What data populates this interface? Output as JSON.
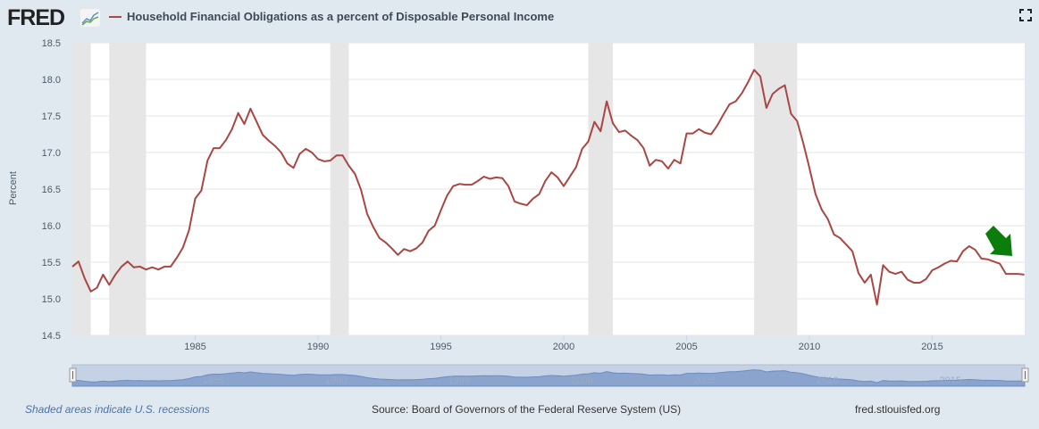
{
  "header": {
    "logo": "FRED",
    "fullscreen_icon": "expand-icon"
  },
  "footer": {
    "recession_note": "Shaded areas indicate U.S. recessions",
    "source": "Source: Board of Governors of the Federal Reserve System (US)",
    "site": "fred.stlouisfed.org"
  },
  "colors": {
    "series": "#aa4643",
    "recession": "#e6e6e6",
    "navigator_fill": "#8aa4cd",
    "arrow": "#0a7d0a",
    "recession_note": "#4a73a8"
  },
  "annotation": {
    "type": "arrow",
    "color": "#0a7d0a",
    "direction": "down-right"
  },
  "chart_data": {
    "type": "line",
    "title": "",
    "xlabel": "",
    "ylabel": "Percent",
    "ylim": [
      14.5,
      18.5
    ],
    "yticks": [
      "14.5",
      "15.0",
      "15.5",
      "16.0",
      "16.5",
      "17.0",
      "17.5",
      "18.0",
      "18.5"
    ],
    "xticks": [
      "1985",
      "1990",
      "1995",
      "2000",
      "2005",
      "2010",
      "2015"
    ],
    "grid": true,
    "legend_position": "top-left",
    "series": [
      {
        "name": "Household Financial Obligations as a percent of Disposable Personal Income",
        "x": [
          "1980Q1",
          "1980Q2",
          "1980Q3",
          "1980Q4",
          "1981Q1",
          "1981Q2",
          "1981Q3",
          "1981Q4",
          "1982Q1",
          "1982Q2",
          "1982Q3",
          "1982Q4",
          "1983Q1",
          "1983Q2",
          "1983Q3",
          "1983Q4",
          "1984Q1",
          "1984Q2",
          "1984Q3",
          "1984Q4",
          "1985Q1",
          "1985Q2",
          "1985Q3",
          "1985Q4",
          "1986Q1",
          "1986Q2",
          "1986Q3",
          "1986Q4",
          "1987Q1",
          "1987Q2",
          "1987Q3",
          "1987Q4",
          "1988Q1",
          "1988Q2",
          "1988Q3",
          "1988Q4",
          "1989Q1",
          "1989Q2",
          "1989Q3",
          "1989Q4",
          "1990Q1",
          "1990Q2",
          "1990Q3",
          "1990Q4",
          "1991Q1",
          "1991Q2",
          "1991Q3",
          "1991Q4",
          "1992Q1",
          "1992Q2",
          "1992Q3",
          "1992Q4",
          "1993Q1",
          "1993Q2",
          "1993Q3",
          "1993Q4",
          "1994Q1",
          "1994Q2",
          "1994Q3",
          "1994Q4",
          "1995Q1",
          "1995Q2",
          "1995Q3",
          "1995Q4",
          "1996Q1",
          "1996Q2",
          "1996Q3",
          "1996Q4",
          "1997Q1",
          "1997Q2",
          "1997Q3",
          "1997Q4",
          "1998Q1",
          "1998Q2",
          "1998Q3",
          "1998Q4",
          "1999Q1",
          "1999Q2",
          "1999Q3",
          "1999Q4",
          "2000Q1",
          "2000Q2",
          "2000Q3",
          "2000Q4",
          "2001Q1",
          "2001Q2",
          "2001Q3",
          "2001Q4",
          "2002Q1",
          "2002Q2",
          "2002Q3",
          "2002Q4",
          "2003Q1",
          "2003Q2",
          "2003Q3",
          "2003Q4",
          "2004Q1",
          "2004Q2",
          "2004Q3",
          "2004Q4",
          "2005Q1",
          "2005Q2",
          "2005Q3",
          "2005Q4",
          "2006Q1",
          "2006Q2",
          "2006Q3",
          "2006Q4",
          "2007Q1",
          "2007Q2",
          "2007Q3",
          "2007Q4",
          "2008Q1",
          "2008Q2",
          "2008Q3",
          "2008Q4",
          "2009Q1",
          "2009Q2",
          "2009Q3",
          "2009Q4",
          "2010Q1",
          "2010Q2",
          "2010Q3",
          "2010Q4",
          "2011Q1",
          "2011Q2",
          "2011Q3",
          "2011Q4",
          "2012Q1",
          "2012Q2",
          "2012Q3",
          "2012Q4",
          "2013Q1",
          "2013Q2",
          "2013Q3",
          "2013Q4",
          "2014Q1",
          "2014Q2",
          "2014Q3",
          "2014Q4",
          "2015Q1",
          "2015Q2",
          "2015Q3",
          "2015Q4",
          "2016Q1",
          "2016Q2",
          "2016Q3",
          "2016Q4",
          "2017Q1",
          "2017Q2",
          "2017Q3",
          "2017Q4",
          "2018Q1",
          "2018Q2",
          "2018Q3",
          "2018Q4"
        ],
        "values": [
          15.44,
          15.51,
          15.28,
          15.1,
          15.15,
          15.33,
          15.19,
          15.33,
          15.44,
          15.51,
          15.43,
          15.44,
          15.4,
          15.43,
          15.4,
          15.44,
          15.44,
          15.56,
          15.7,
          15.94,
          16.37,
          16.48,
          16.89,
          17.06,
          17.06,
          17.17,
          17.32,
          17.54,
          17.39,
          17.6,
          17.42,
          17.24,
          17.16,
          17.09,
          17.0,
          16.85,
          16.79,
          16.98,
          17.05,
          17.0,
          16.91,
          16.88,
          16.89,
          16.96,
          16.96,
          16.82,
          16.71,
          16.49,
          16.16,
          15.98,
          15.83,
          15.77,
          15.69,
          15.6,
          15.68,
          15.65,
          15.69,
          15.77,
          15.93,
          16.0,
          16.21,
          16.41,
          16.54,
          16.57,
          16.56,
          16.56,
          16.61,
          16.67,
          16.64,
          16.66,
          16.65,
          16.54,
          16.33,
          16.3,
          16.28,
          16.37,
          16.43,
          16.61,
          16.73,
          16.66,
          16.54,
          16.67,
          16.8,
          17.05,
          17.15,
          17.42,
          17.29,
          17.7,
          17.4,
          17.28,
          17.3,
          17.23,
          17.17,
          17.06,
          16.82,
          16.9,
          16.88,
          16.78,
          16.9,
          16.85,
          17.26,
          17.26,
          17.32,
          17.27,
          17.25,
          17.37,
          17.52,
          17.66,
          17.7,
          17.81,
          17.96,
          18.13,
          18.04,
          17.61,
          17.8,
          17.87,
          17.92,
          17.53,
          17.43,
          17.13,
          16.79,
          16.43,
          16.22,
          16.09,
          15.88,
          15.83,
          15.74,
          15.65,
          15.35,
          15.22,
          15.33,
          14.92,
          15.46,
          15.37,
          15.34,
          15.37,
          15.26,
          15.22,
          15.22,
          15.27,
          15.39,
          15.43,
          15.48,
          15.52,
          15.51,
          15.65,
          15.72,
          15.67,
          15.55,
          15.54,
          15.51,
          15.48,
          15.34,
          15.34,
          15.34,
          15.33
        ]
      }
    ],
    "recessions": [
      [
        "1980Q1",
        "1980Q3"
      ],
      [
        "1981Q3",
        "1982Q4"
      ],
      [
        "1990Q3",
        "1991Q1"
      ],
      [
        "2001Q1",
        "2001Q4"
      ],
      [
        "2007Q4",
        "2009Q2"
      ]
    ],
    "navigator_ticks": [
      "1985",
      "1990",
      "1995",
      "2000",
      "2005",
      "2010",
      "2015"
    ]
  }
}
